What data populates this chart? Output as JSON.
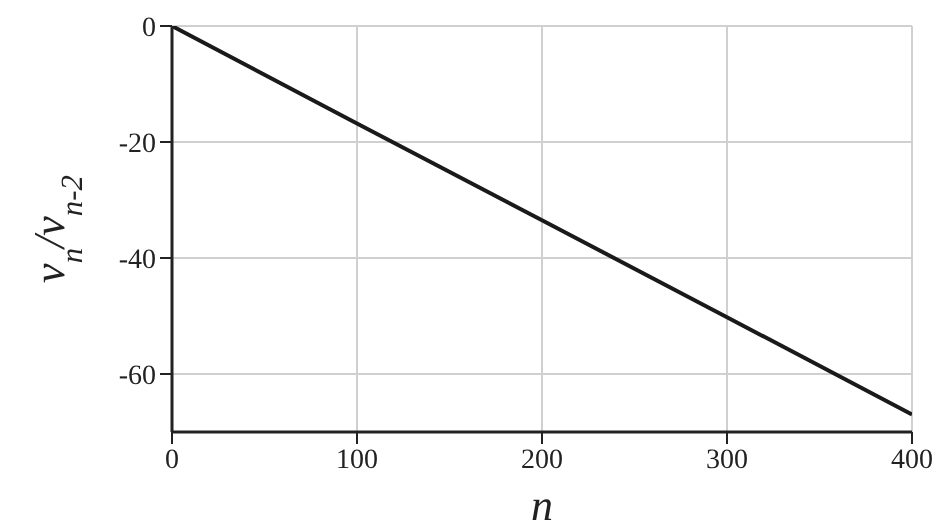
{
  "chart_data": {
    "type": "line",
    "xlabel": "n",
    "ylabel": "v$_{n}$/v$_{n-2}$",
    "x": [
      0,
      100,
      200,
      300,
      400
    ],
    "series": [
      {
        "color": "#1a1a1a",
        "values": [
          0,
          -16.8,
          -33.5,
          -50.2,
          -67
        ]
      }
    ],
    "xlim": [
      0,
      400
    ],
    "xticks": [
      0,
      100,
      200,
      300,
      400
    ],
    "ylim": [
      -70,
      0
    ],
    "yticks": [
      0,
      -20,
      -40,
      -60
    ],
    "grid": true,
    "marker": "none",
    "line_style": "solid",
    "legend": false
  }
}
